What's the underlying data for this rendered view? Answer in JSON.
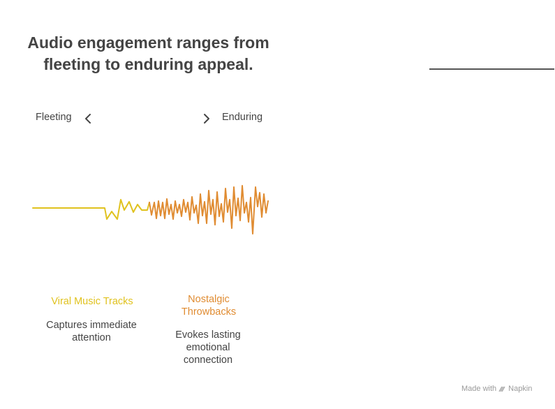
{
  "title": "Audio engagement ranges from fleeting to enduring appeal.",
  "scale": {
    "left_label": "Fleeting",
    "right_label": "Enduring",
    "left_icon": "chevron-left-icon",
    "right_icon": "chevron-right-icon"
  },
  "items": [
    {
      "title": "Viral Music Tracks",
      "description": "Captures immediate attention",
      "color": "#E0C21E"
    },
    {
      "title": "Nostalgic Throwbacks",
      "description": "Evokes lasting emotional connection",
      "color": "#E08C32"
    }
  ],
  "footer": {
    "text": "Made with",
    "brand": "Napkin",
    "icon": "napkin-logo-icon"
  }
}
